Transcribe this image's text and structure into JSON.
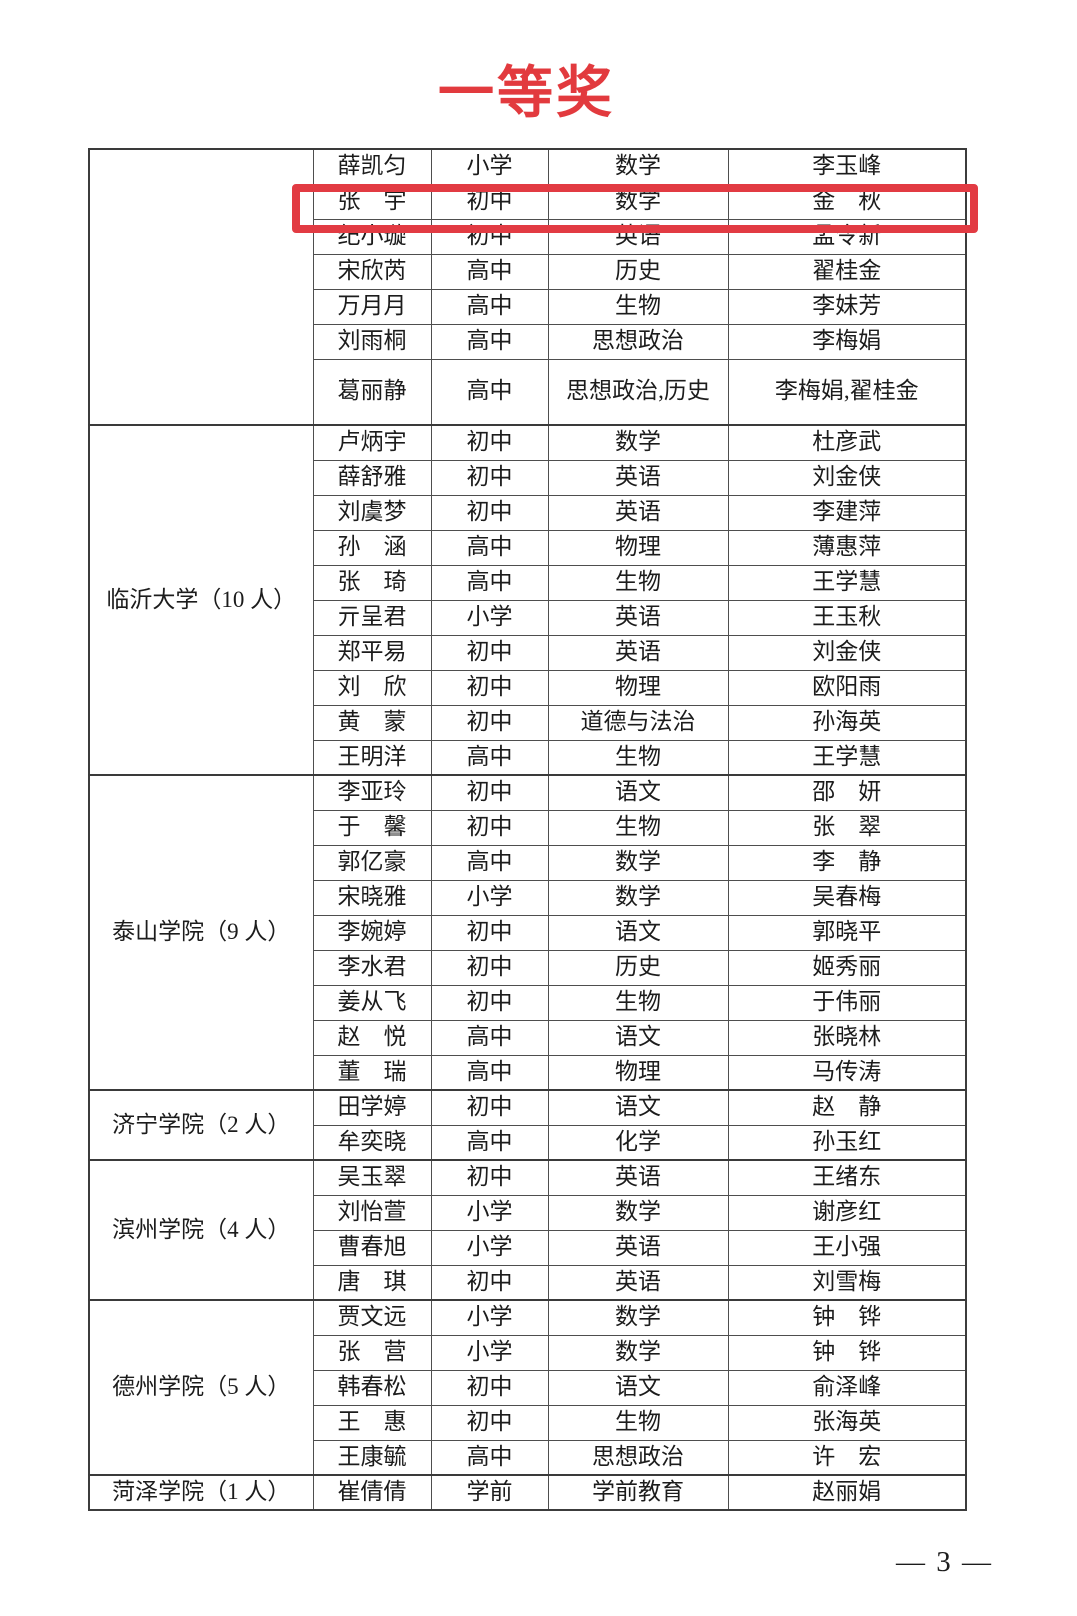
{
  "title": {
    "text": "一等奖",
    "color": "#e23a3e"
  },
  "highlight": {
    "color": "#e23b43",
    "marked_row": "张　宇"
  },
  "page_number": "— 3 —",
  "table": {
    "groups": [
      {
        "university": "",
        "rows": [
          {
            "name": "薛凯匀",
            "level": "小学",
            "subject": "数学",
            "teacher": "李玉峰",
            "highlighted": false
          },
          {
            "name": "张　宇",
            "level": "初中",
            "subject": "数学",
            "teacher": "金　秋",
            "highlighted": true
          },
          {
            "name": "纪小璇",
            "level": "初中",
            "subject": "英语",
            "teacher": "孟令新",
            "highlighted": false
          },
          {
            "name": "宋欣芮",
            "level": "高中",
            "subject": "历史",
            "teacher": "翟桂金",
            "highlighted": false
          },
          {
            "name": "万月月",
            "level": "高中",
            "subject": "生物",
            "teacher": "李妹芳",
            "highlighted": false
          },
          {
            "name": "刘雨桐",
            "level": "高中",
            "subject": "思想政治",
            "teacher": "李梅娟",
            "highlighted": false
          },
          {
            "name": "葛丽静",
            "level": "高中",
            "subject": "思想政治,历史",
            "teacher": "李梅娟,翟桂金",
            "highlighted": false
          }
        ]
      },
      {
        "university": "临沂大学（10 人）",
        "rows": [
          {
            "name": "卢炳宇",
            "level": "初中",
            "subject": "数学",
            "teacher": "杜彦武",
            "highlighted": false
          },
          {
            "name": "薛舒雅",
            "level": "初中",
            "subject": "英语",
            "teacher": "刘金侠",
            "highlighted": false
          },
          {
            "name": "刘虞梦",
            "level": "初中",
            "subject": "英语",
            "teacher": "李建萍",
            "highlighted": false
          },
          {
            "name": "孙　涵",
            "level": "高中",
            "subject": "物理",
            "teacher": "薄惠萍",
            "highlighted": false
          },
          {
            "name": "张　琦",
            "level": "高中",
            "subject": "生物",
            "teacher": "王学慧",
            "highlighted": false
          },
          {
            "name": "亓呈君",
            "level": "小学",
            "subject": "英语",
            "teacher": "王玉秋",
            "highlighted": false
          },
          {
            "name": "郑平易",
            "level": "初中",
            "subject": "英语",
            "teacher": "刘金侠",
            "highlighted": false
          },
          {
            "name": "刘　欣",
            "level": "初中",
            "subject": "物理",
            "teacher": "欧阳雨",
            "highlighted": false
          },
          {
            "name": "黄　蒙",
            "level": "初中",
            "subject": "道德与法治",
            "teacher": "孙海英",
            "highlighted": false
          },
          {
            "name": "王明洋",
            "level": "高中",
            "subject": "生物",
            "teacher": "王学慧",
            "highlighted": false
          }
        ]
      },
      {
        "university": "泰山学院（9 人）",
        "rows": [
          {
            "name": "李亚玲",
            "level": "初中",
            "subject": "语文",
            "teacher": "邵　妍",
            "highlighted": false
          },
          {
            "name": "于　馨",
            "level": "初中",
            "subject": "生物",
            "teacher": "张　翠",
            "highlighted": false
          },
          {
            "name": "郭亿豪",
            "level": "高中",
            "subject": "数学",
            "teacher": "李　静",
            "highlighted": false
          },
          {
            "name": "宋晓雅",
            "level": "小学",
            "subject": "数学",
            "teacher": "吴春梅",
            "highlighted": false
          },
          {
            "name": "李婉婷",
            "level": "初中",
            "subject": "语文",
            "teacher": "郭晓平",
            "highlighted": false
          },
          {
            "name": "李水君",
            "level": "初中",
            "subject": "历史",
            "teacher": "姬秀丽",
            "highlighted": false
          },
          {
            "name": "姜从飞",
            "level": "初中",
            "subject": "生物",
            "teacher": "于伟丽",
            "highlighted": false
          },
          {
            "name": "赵　悦",
            "level": "高中",
            "subject": "语文",
            "teacher": "张晓林",
            "highlighted": false
          },
          {
            "name": "董　瑞",
            "level": "高中",
            "subject": "物理",
            "teacher": "马传涛",
            "highlighted": false
          }
        ]
      },
      {
        "university": "济宁学院（2 人）",
        "rows": [
          {
            "name": "田学婷",
            "level": "初中",
            "subject": "语文",
            "teacher": "赵　静",
            "highlighted": false
          },
          {
            "name": "牟奕晓",
            "level": "高中",
            "subject": "化学",
            "teacher": "孙玉红",
            "highlighted": false
          }
        ]
      },
      {
        "university": "滨州学院（4 人）",
        "rows": [
          {
            "name": "吴玉翠",
            "level": "初中",
            "subject": "英语",
            "teacher": "王绪东",
            "highlighted": false
          },
          {
            "name": "刘怡萱",
            "level": "小学",
            "subject": "数学",
            "teacher": "谢彦红",
            "highlighted": false
          },
          {
            "name": "曹春旭",
            "level": "小学",
            "subject": "英语",
            "teacher": "王小强",
            "highlighted": false
          },
          {
            "name": "唐　琪",
            "level": "初中",
            "subject": "英语",
            "teacher": "刘雪梅",
            "highlighted": false
          }
        ]
      },
      {
        "university": "德州学院（5 人）",
        "rows": [
          {
            "name": "贾文远",
            "level": "小学",
            "subject": "数学",
            "teacher": "钟　铧",
            "highlighted": false
          },
          {
            "name": "张　营",
            "level": "小学",
            "subject": "数学",
            "teacher": "钟　铧",
            "highlighted": false
          },
          {
            "name": "韩春松",
            "level": "初中",
            "subject": "语文",
            "teacher": "俞泽峰",
            "highlighted": false
          },
          {
            "name": "王　惠",
            "level": "初中",
            "subject": "生物",
            "teacher": "张海英",
            "highlighted": false
          },
          {
            "name": "王康毓",
            "level": "高中",
            "subject": "思想政治",
            "teacher": "许　宏",
            "highlighted": false
          }
        ]
      },
      {
        "university": "菏泽学院（1 人）",
        "rows": [
          {
            "name": "崔倩倩",
            "level": "学前",
            "subject": "学前教育",
            "teacher": "赵丽娟",
            "highlighted": false
          }
        ]
      }
    ]
  }
}
